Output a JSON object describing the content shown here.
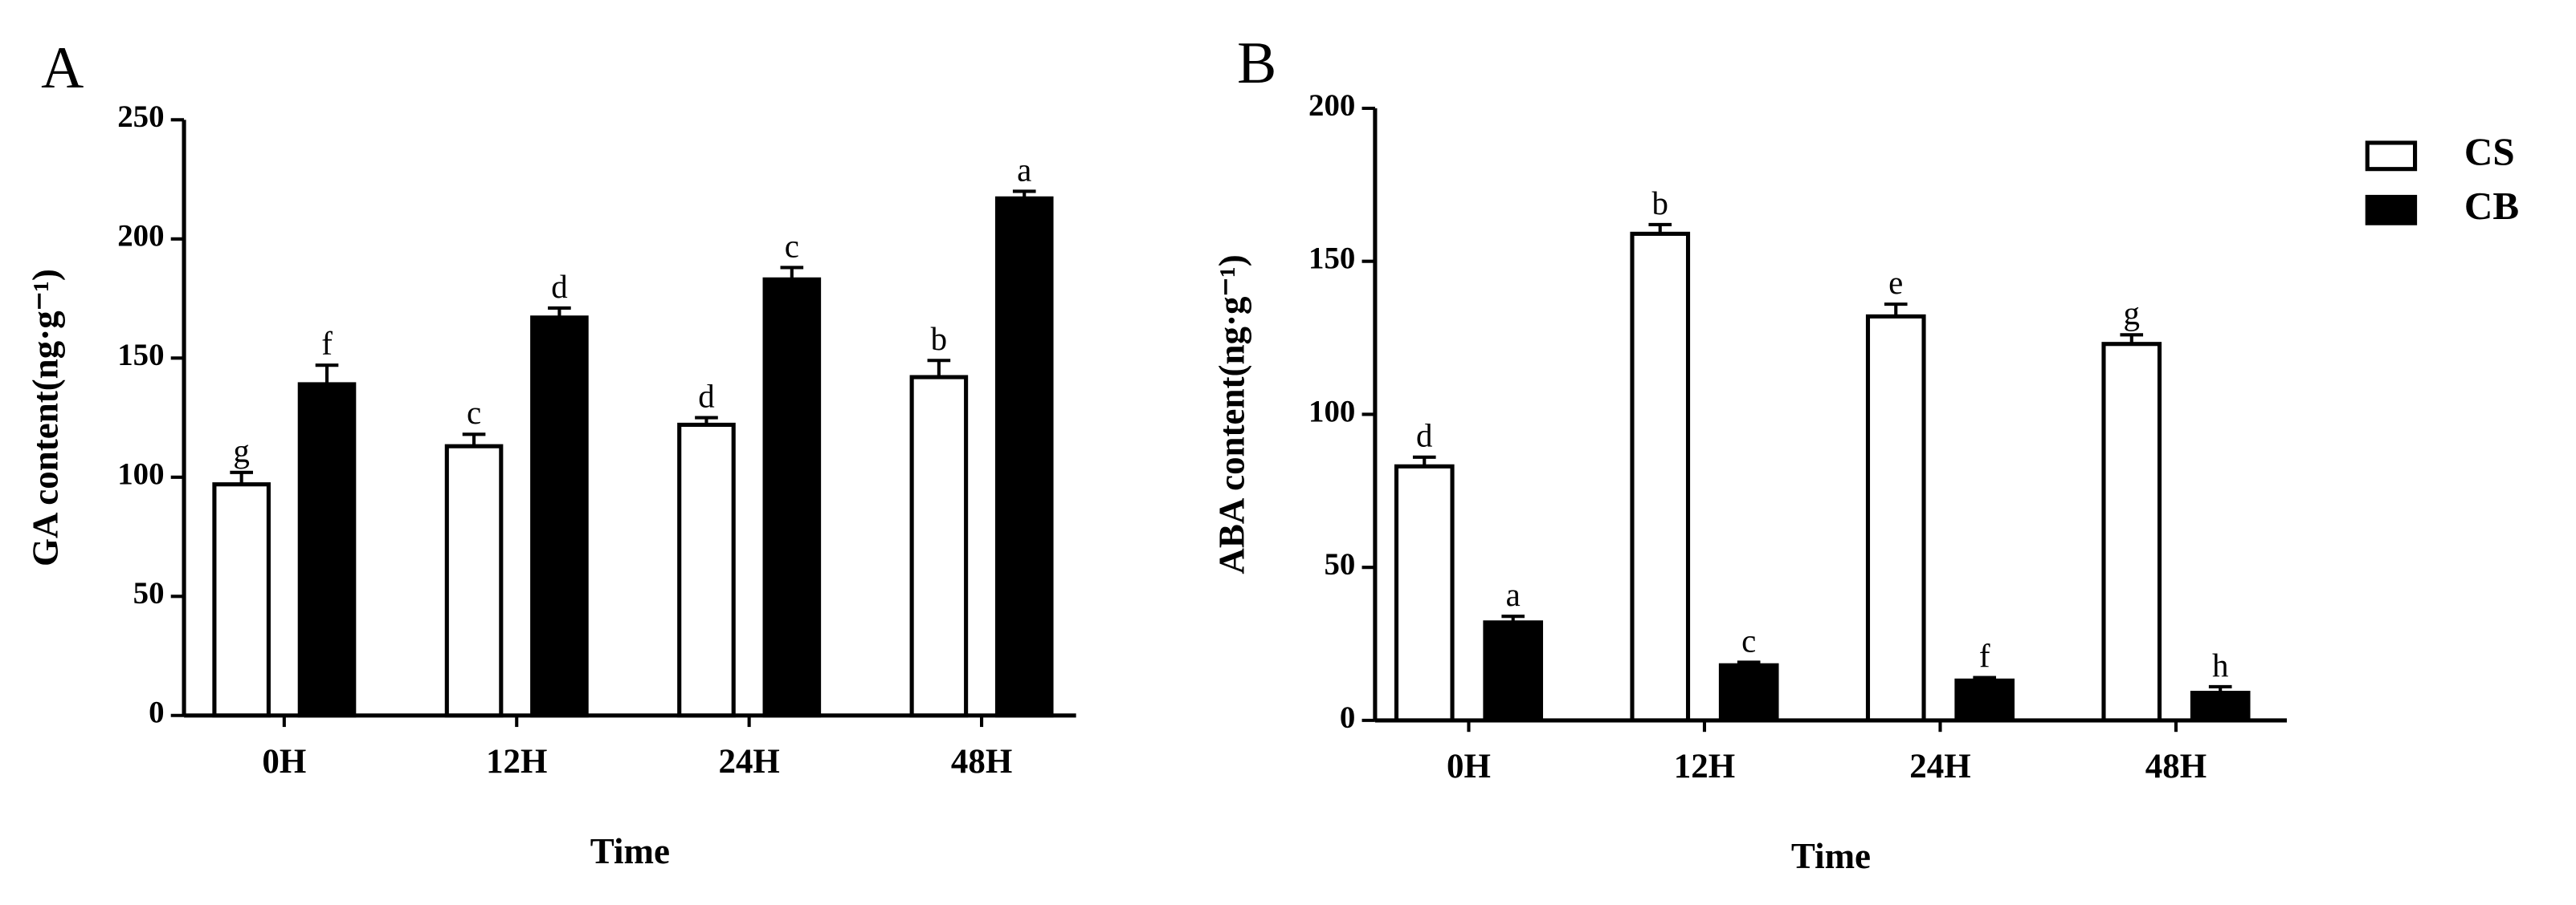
{
  "chart_data": [
    {
      "type": "bar",
      "panel": "A",
      "xlabel": "Time",
      "ylabel": "GA content(ng·g⁻¹)",
      "categories": [
        "0H",
        "12H",
        "24H",
        "48H"
      ],
      "series": [
        {
          "color": "#ffffff",
          "edge": "#000000",
          "values": [
            97,
            113,
            122,
            142
          ],
          "errors": [
            5,
            5,
            3,
            7
          ],
          "letters": [
            "g",
            "c",
            "d",
            "b"
          ]
        },
        {
          "color": "#000000",
          "edge": "#000000",
          "values": [
            139,
            167,
            183,
            217
          ],
          "errors": [
            8,
            4,
            5,
            3
          ],
          "letters": [
            "f",
            "d",
            "c",
            "a"
          ]
        }
      ],
      "ylim": [
        0,
        250
      ],
      "yticks": [
        0,
        50,
        100,
        150,
        200,
        250
      ]
    },
    {
      "type": "bar",
      "panel": "B",
      "xlabel": "Time",
      "ylabel": "ABA content(ng·g⁻¹)",
      "categories": [
        "0H",
        "12H",
        "24H",
        "48H"
      ],
      "series": [
        {
          "name": "CS",
          "color": "#ffffff",
          "edge": "#000000",
          "values": [
            83,
            159,
            132,
            123
          ],
          "errors": [
            3,
            3,
            4,
            3
          ],
          "letters": [
            "d",
            "b",
            "e",
            "g"
          ]
        },
        {
          "name": "CB",
          "color": "#000000",
          "edge": "#000000",
          "values": [
            32,
            18,
            13,
            9
          ],
          "errors": [
            2,
            1,
            1,
            2
          ],
          "letters": [
            "a",
            "c",
            "f",
            "h"
          ]
        }
      ],
      "ylim": [
        0,
        200
      ],
      "yticks": [
        0,
        50,
        100,
        150,
        200
      ],
      "legend": "right"
    }
  ]
}
